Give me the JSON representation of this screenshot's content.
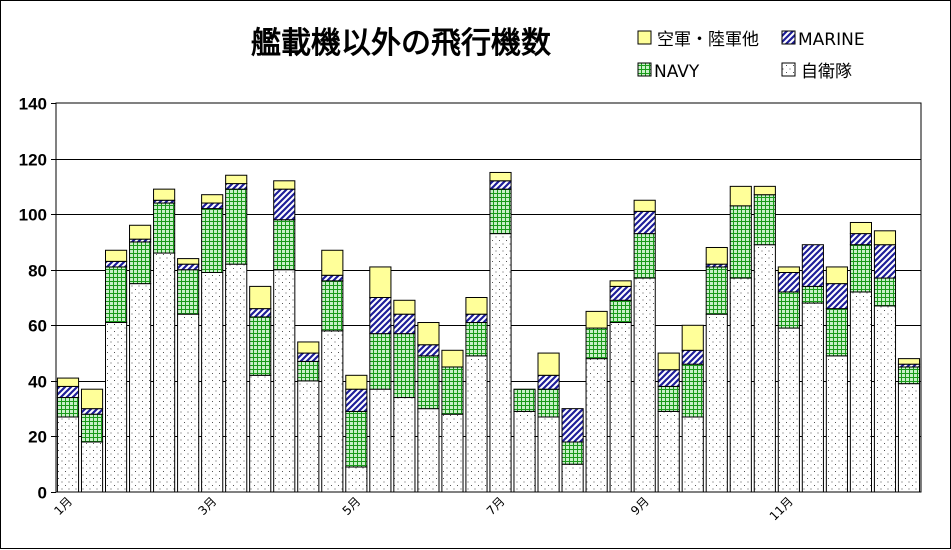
{
  "chart_data": {
    "type": "bar",
    "stacked": true,
    "title": "艦載機以外の飛行機数",
    "ylim": [
      0,
      140
    ],
    "yticks": [
      0,
      20,
      40,
      60,
      80,
      100,
      120,
      140
    ],
    "grid": true,
    "legend_position": "top-right",
    "x_tick_labels": [
      "1月",
      "3月",
      "5月",
      "7月",
      "9月",
      "11月"
    ],
    "x_tick_indices": [
      0,
      6,
      12,
      18,
      24,
      30
    ],
    "bar_count": 36,
    "series": [
      {
        "name": "自衛隊",
        "color": "#ffffff",
        "values": [
          27,
          18,
          61,
          75,
          86,
          64,
          79,
          82,
          42,
          80,
          40,
          58,
          9,
          37,
          34,
          30,
          28,
          49,
          93,
          29,
          27,
          10,
          48,
          61,
          77,
          29,
          27,
          64,
          77,
          89,
          59,
          68,
          49,
          72,
          67,
          39
        ]
      },
      {
        "name": "NAVY",
        "color": "#c8f0c8",
        "values": [
          7,
          10,
          20,
          15,
          18,
          16,
          23,
          27,
          21,
          18,
          7,
          18,
          20,
          20,
          23,
          19,
          17,
          12,
          16,
          8,
          10,
          8,
          11,
          8,
          16,
          9,
          19,
          17,
          26,
          18,
          13,
          6,
          17,
          17,
          10,
          6
        ]
      },
      {
        "name": "MARINE",
        "color": "#3a3ad0",
        "values": [
          4,
          2,
          2,
          1,
          1,
          2,
          2,
          2,
          3,
          11,
          3,
          2,
          8,
          13,
          7,
          4,
          0,
          3,
          3,
          0,
          5,
          12,
          0,
          5,
          8,
          6,
          5,
          1,
          0,
          0,
          7,
          15,
          9,
          4,
          12,
          1
        ]
      },
      {
        "name": "空軍・陸軍他",
        "color": "#ffff99",
        "values": [
          3,
          7,
          4,
          5,
          4,
          2,
          3,
          3,
          8,
          3,
          4,
          9,
          5,
          11,
          5,
          8,
          6,
          6,
          3,
          0,
          8,
          0,
          6,
          2,
          4,
          6,
          9,
          6,
          7,
          3,
          2,
          0,
          6,
          4,
          5,
          2
        ]
      }
    ],
    "legend": [
      {
        "name": "空軍・陸軍他",
        "series": 3
      },
      {
        "name": "MARINE",
        "series": 2
      },
      {
        "name": "NAVY",
        "series": 1
      },
      {
        "name": "自衛隊",
        "series": 0
      }
    ]
  }
}
